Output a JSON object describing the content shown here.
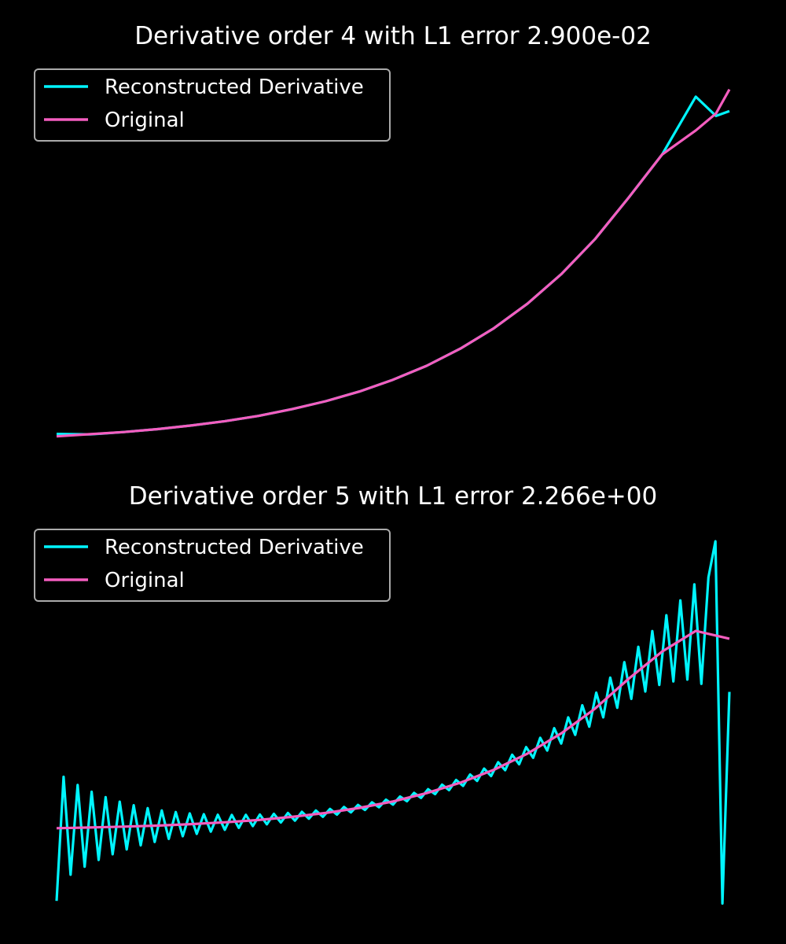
{
  "colors": {
    "background": "#000000",
    "reconstructed": "#00f5ff",
    "original": "#f45dbf",
    "legend_border": "#aaaaaa"
  },
  "chart_data": [
    {
      "type": "line",
      "title": "Derivative order 4 with L1 error 2.900e-02",
      "axes_visible": false,
      "legend": "top-left",
      "x": [
        0.0,
        0.05,
        0.1,
        0.15,
        0.2,
        0.25,
        0.3,
        0.35,
        0.4,
        0.45,
        0.5,
        0.55,
        0.6,
        0.65,
        0.7,
        0.75,
        0.8,
        0.85,
        0.9,
        0.95,
        0.98,
        1.0
      ],
      "series": [
        {
          "name": "Reconstructed Derivative",
          "values": [
            0.01,
            0.008,
            0.018,
            0.03,
            0.045,
            0.063,
            0.085,
            0.113,
            0.146,
            0.186,
            0.235,
            0.293,
            0.364,
            0.449,
            0.551,
            0.673,
            0.818,
            0.99,
            1.17,
            1.41,
            1.33,
            1.35
          ]
        },
        {
          "name": "Original",
          "values": [
            0.0,
            0.009,
            0.018,
            0.03,
            0.045,
            0.063,
            0.085,
            0.113,
            0.146,
            0.186,
            0.235,
            0.293,
            0.364,
            0.449,
            0.551,
            0.673,
            0.818,
            0.99,
            1.17,
            1.27,
            1.34,
            1.44
          ]
        }
      ]
    },
    {
      "type": "line",
      "title": "Derivative order 5 with L1 error 2.266e+00",
      "axes_visible": false,
      "legend": "top-left",
      "x": [
        0.0,
        0.05,
        0.1,
        0.15,
        0.2,
        0.25,
        0.3,
        0.35,
        0.4,
        0.45,
        0.5,
        0.55,
        0.6,
        0.65,
        0.7,
        0.75,
        0.8,
        0.85,
        0.9,
        0.95,
        1.0
      ],
      "oscillation": "alternating zigzag around the original, large at both ends, smallest near the middle",
      "series": [
        {
          "name": "Reconstructed Derivative",
          "values": [
            -0.56,
            0.31,
            -0.39,
            0.36,
            -0.19,
            0.2,
            -0.11,
            0.13,
            -0.05,
            0.08,
            0.03,
            0.13,
            0.21,
            0.35,
            0.49,
            0.7,
            0.96,
            1.35,
            1.88,
            2.21,
            1.05
          ]
        },
        {
          "name": "Original",
          "values": [
            0.0,
            0.005,
            0.012,
            0.02,
            0.031,
            0.045,
            0.063,
            0.087,
            0.117,
            0.156,
            0.206,
            0.27,
            0.35,
            0.45,
            0.575,
            0.73,
            0.92,
            1.15,
            1.36,
            1.52,
            1.46
          ]
        }
      ]
    }
  ]
}
